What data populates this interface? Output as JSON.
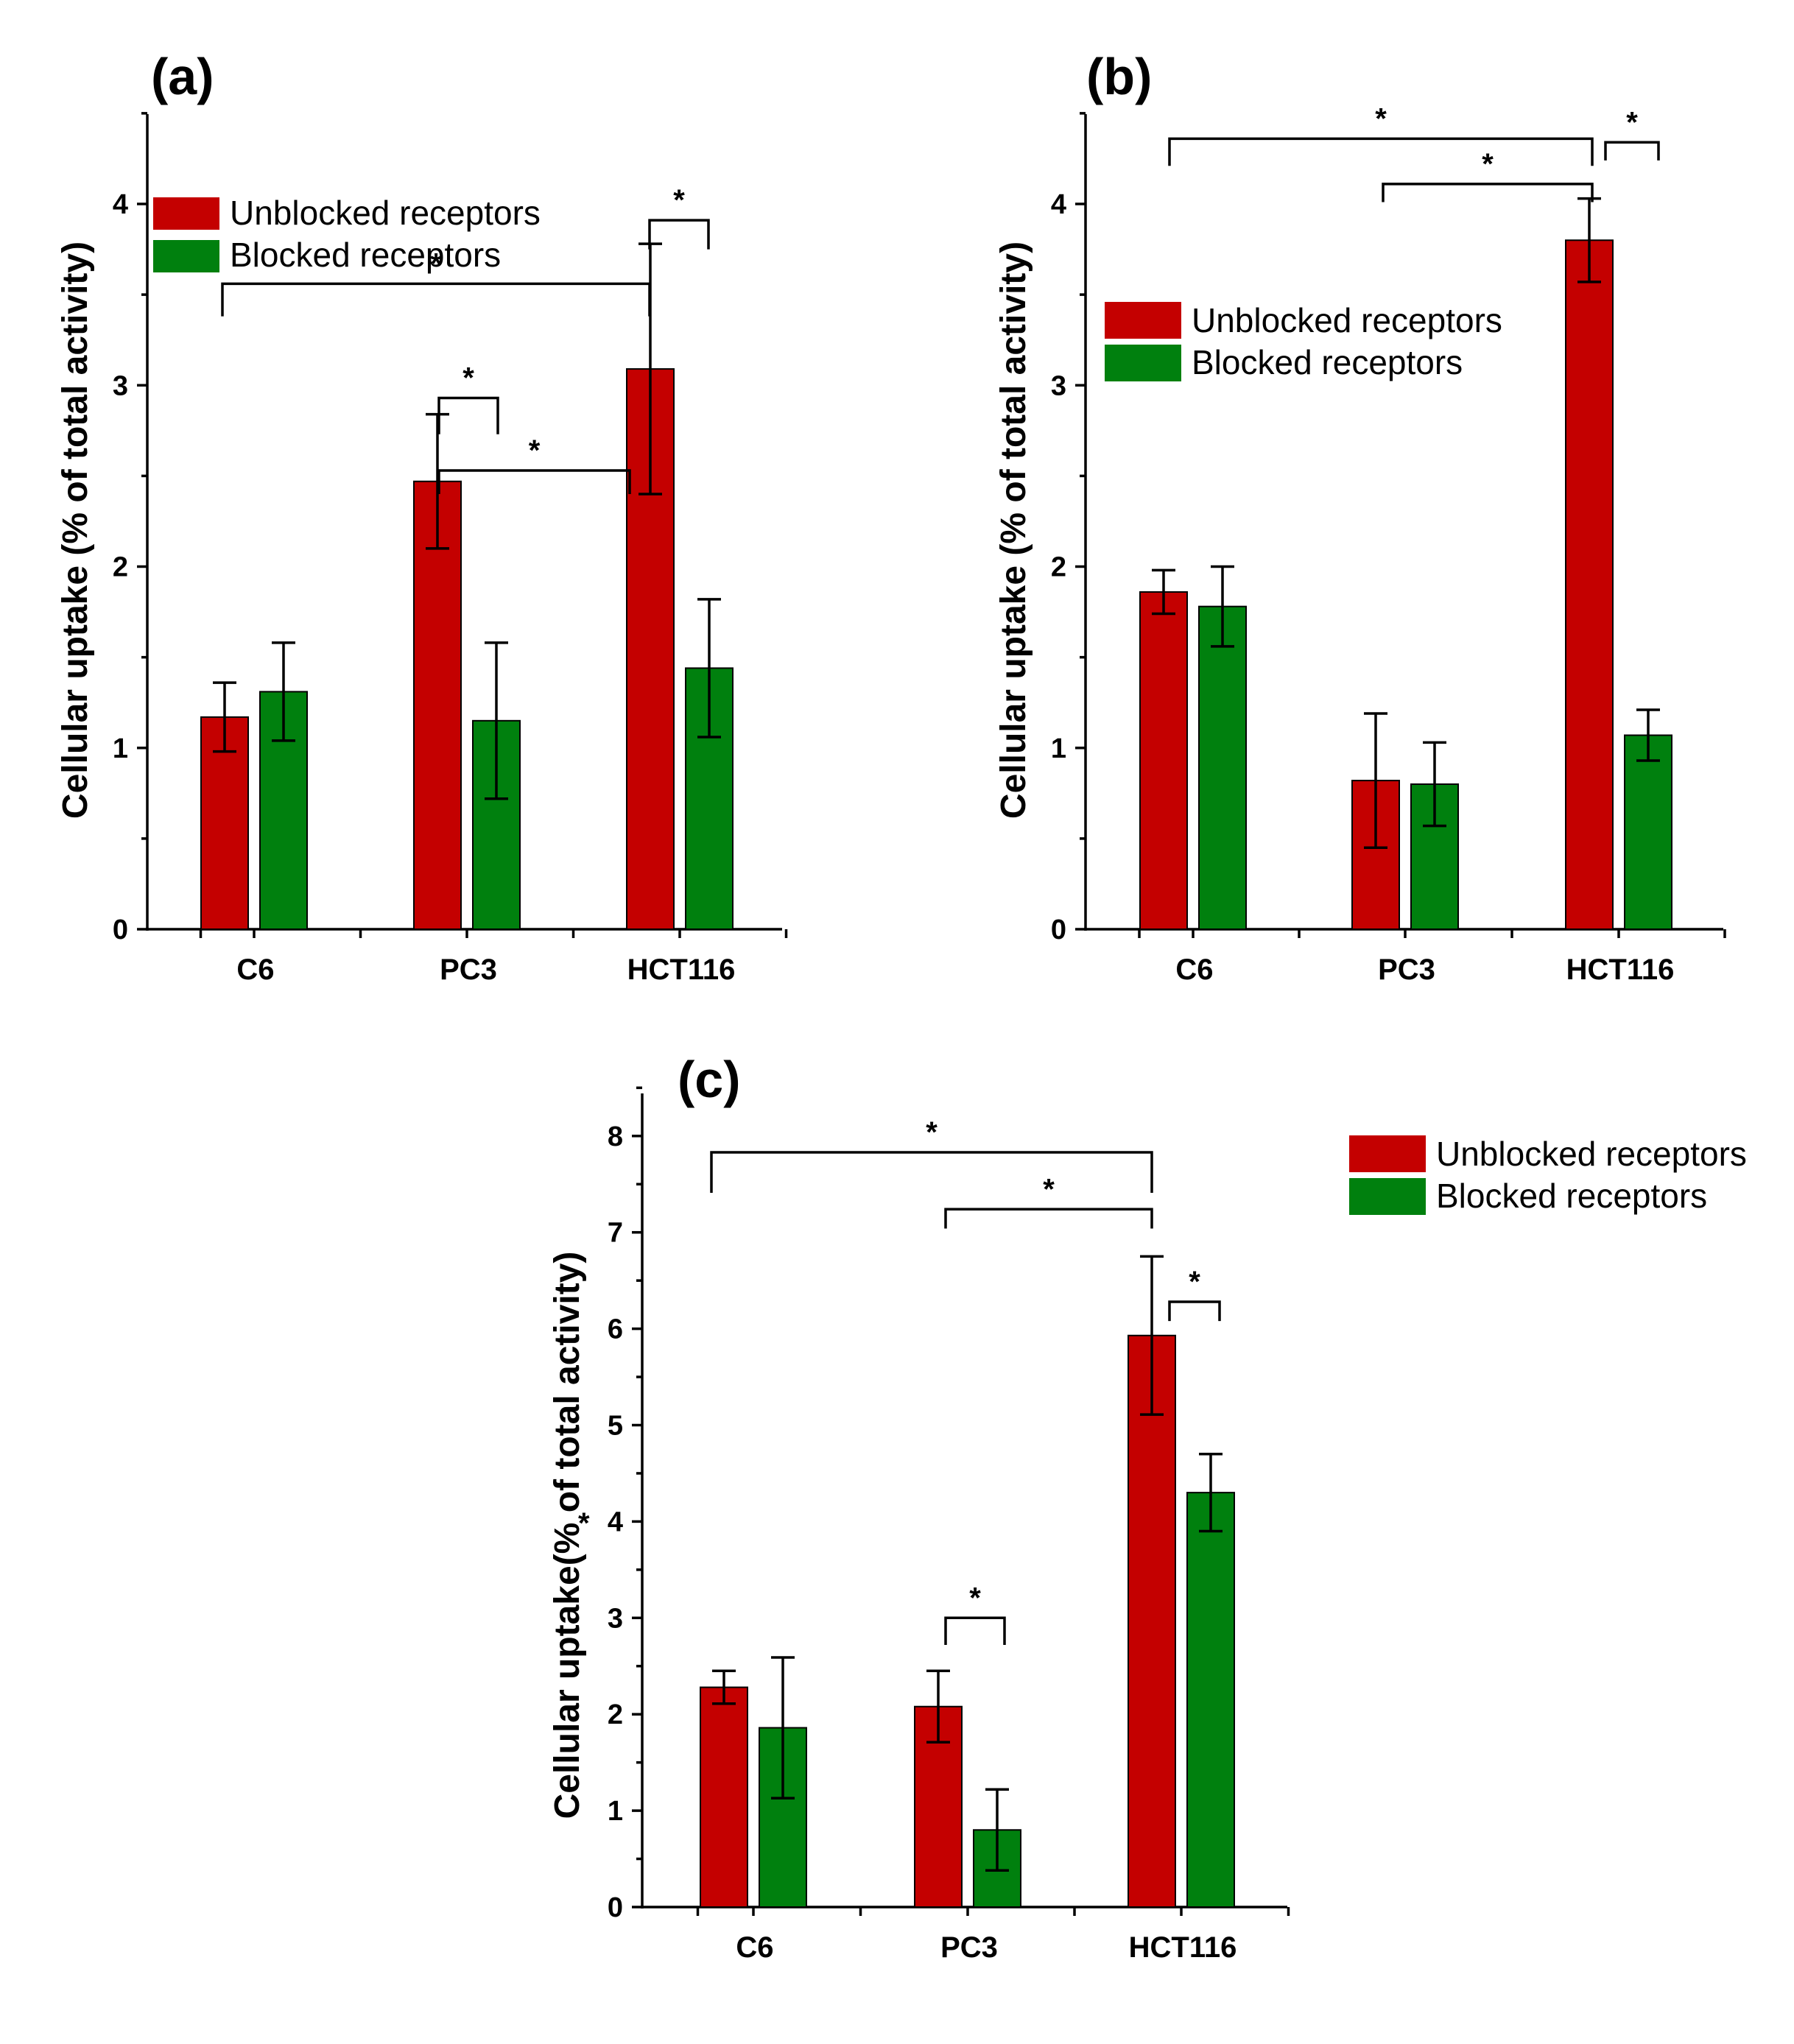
{
  "colors": {
    "unblocked": "#c40000",
    "blocked": "#00800e"
  },
  "chart_data": [
    {
      "panel": "(a)",
      "type": "bar",
      "categories": [
        "C6",
        "PC3",
        "HCT116"
      ],
      "series": [
        {
          "name": "Unblocked receptors",
          "values": [
            1.17,
            2.47,
            3.09
          ],
          "errors": [
            0.19,
            0.37,
            0.69
          ]
        },
        {
          "name": "Blocked receptors",
          "values": [
            1.31,
            1.15,
            1.44
          ],
          "errors": [
            0.27,
            0.43,
            0.38
          ]
        }
      ],
      "ylabel": "Cellular uptake (% of total activity)",
      "ylim": [
        0,
        4.5
      ],
      "yticks": [
        "0",
        "1",
        "2",
        "3",
        "4"
      ],
      "legend": [
        "Unblocked receptors",
        "Blocked receptors"
      ],
      "significance": [
        "*",
        "*",
        "*",
        "*"
      ]
    },
    {
      "panel": "(b)",
      "type": "bar",
      "categories": [
        "C6",
        "PC3",
        "HCT116"
      ],
      "series": [
        {
          "name": "Unblocked receptors",
          "values": [
            1.86,
            0.82,
            3.8
          ],
          "errors": [
            0.12,
            0.37,
            0.23
          ]
        },
        {
          "name": "Blocked receptors",
          "values": [
            1.78,
            0.8,
            1.07
          ],
          "errors": [
            0.22,
            0.23,
            0.14
          ]
        }
      ],
      "ylabel": "Cellular uptake (% of total activity)",
      "ylim": [
        0,
        4.5
      ],
      "yticks": [
        "0",
        "1",
        "2",
        "3",
        "4"
      ],
      "legend": [
        "Unblocked receptors",
        "Blocked receptors"
      ],
      "significance": [
        "*",
        "*",
        "*"
      ]
    },
    {
      "panel": "(c)",
      "type": "bar",
      "categories": [
        "C6",
        "PC3",
        "HCT116"
      ],
      "series": [
        {
          "name": "Unblocked receptors",
          "values": [
            2.28,
            2.08,
            5.93
          ],
          "errors": [
            0.17,
            0.37,
            0.82
          ]
        },
        {
          "name": "Blocked receptors",
          "values": [
            1.86,
            0.8,
            4.3
          ],
          "errors": [
            0.73,
            0.42,
            0.4
          ]
        }
      ],
      "ylabel": "Cellular uptake(% of total activity)",
      "ylim": [
        0,
        8.5
      ],
      "yticks": [
        "0",
        "1",
        "2",
        "3",
        "4",
        "5",
        "6",
        "7",
        "8"
      ],
      "legend": [
        "Unblocked receptors",
        "Blocked receptors"
      ],
      "significance": [
        "*",
        "*",
        "*",
        "*"
      ],
      "stray_mark": "*"
    }
  ]
}
